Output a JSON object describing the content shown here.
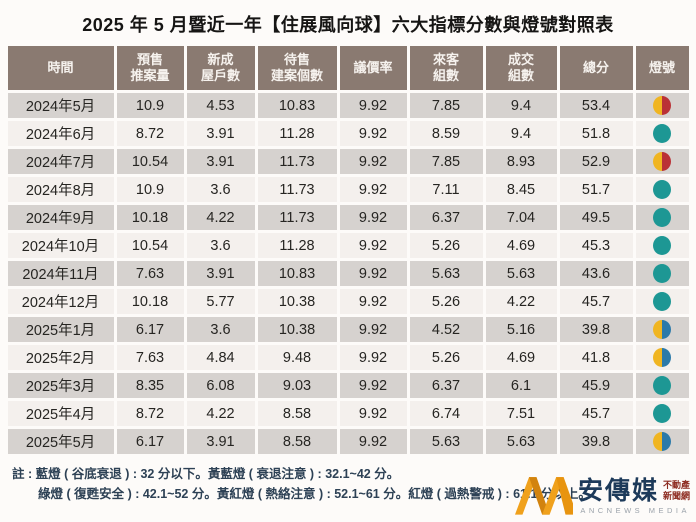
{
  "title": "2025 年 5 月暨近一年【住展風向球】六大指標分數與燈號對照表",
  "table": {
    "headers": [
      "時間",
      "預售\n推案量",
      "新成\n屋戶數",
      "待售\n建案個數",
      "議價率",
      "來客\n組數",
      "成交\n組數",
      "總分",
      "燈號"
    ],
    "rows": [
      {
        "time": "2024年5月",
        "values": [
          "10.9",
          "4.53",
          "10.83",
          "9.92",
          "7.85",
          "9.4",
          "53.4"
        ],
        "light": "yellow-red"
      },
      {
        "time": "2024年6月",
        "values": [
          "8.72",
          "3.91",
          "11.28",
          "9.92",
          "8.59",
          "9.4",
          "51.8"
        ],
        "light": "green"
      },
      {
        "time": "2024年7月",
        "values": [
          "10.54",
          "3.91",
          "11.73",
          "9.92",
          "7.85",
          "8.93",
          "52.9"
        ],
        "light": "yellow-red"
      },
      {
        "time": "2024年8月",
        "values": [
          "10.9",
          "3.6",
          "11.73",
          "9.92",
          "7.11",
          "8.45",
          "51.7"
        ],
        "light": "green"
      },
      {
        "time": "2024年9月",
        "values": [
          "10.18",
          "4.22",
          "11.73",
          "9.92",
          "6.37",
          "7.04",
          "49.5"
        ],
        "light": "green"
      },
      {
        "time": "2024年10月",
        "values": [
          "10.54",
          "3.6",
          "11.28",
          "9.92",
          "5.26",
          "4.69",
          "45.3"
        ],
        "light": "green"
      },
      {
        "time": "2024年11月",
        "values": [
          "7.63",
          "3.91",
          "10.83",
          "9.92",
          "5.63",
          "5.63",
          "43.6"
        ],
        "light": "green"
      },
      {
        "time": "2024年12月",
        "values": [
          "10.18",
          "5.77",
          "10.38",
          "9.92",
          "5.26",
          "4.22",
          "45.7"
        ],
        "light": "green"
      },
      {
        "time": "2025年1月",
        "values": [
          "6.17",
          "3.6",
          "10.38",
          "9.92",
          "4.52",
          "5.16",
          "39.8"
        ],
        "light": "yellow-blue"
      },
      {
        "time": "2025年2月",
        "values": [
          "7.63",
          "4.84",
          "9.48",
          "9.92",
          "5.26",
          "4.69",
          "41.8"
        ],
        "light": "yellow-blue"
      },
      {
        "time": "2025年3月",
        "values": [
          "8.35",
          "6.08",
          "9.03",
          "9.92",
          "6.37",
          "6.1",
          "45.9"
        ],
        "light": "green"
      },
      {
        "time": "2025年4月",
        "values": [
          "8.72",
          "4.22",
          "8.58",
          "9.92",
          "6.74",
          "7.51",
          "45.7"
        ],
        "light": "green"
      },
      {
        "time": "2025年5月",
        "values": [
          "6.17",
          "3.91",
          "8.58",
          "9.92",
          "5.63",
          "5.63",
          "39.8"
        ],
        "light": "yellow-blue"
      }
    ]
  },
  "notes": {
    "line1": "註 : 藍燈 ( 谷底衰退 ) : 32 分以下。黃藍燈 ( 衰退注意 ) : 32.1~42 分。",
    "line2": "綠燈 ( 復甦安全 ) : 42.1~52 分。黃紅燈 ( 熱絡注意 ) : 52.1~61 分。紅燈 ( 過熱警戒 ) : 61.1 分以上。"
  },
  "watermark": {
    "brand": "安傳媒",
    "sub_line1": "不動產",
    "sub_line2": "新聞網",
    "latin": "ANCNEWS MEDIA"
  },
  "colors": {
    "header-bg": "#8a7a71",
    "row-dark": "#d6d2cf",
    "row-light": "#f4f0ed",
    "green": "#1d9794",
    "yellow": "#f0b521",
    "red": "#ba3136",
    "blue": "#2c7aa9"
  },
  "chart_data": {
    "type": "table",
    "title": "2025 年 5 月暨近一年【住展風向球】六大指標分數與燈號對照表",
    "columns": [
      "時間",
      "預售推案量",
      "新成屋戶數",
      "待售建案個數",
      "議價率",
      "來客組數",
      "成交組數",
      "總分",
      "燈號"
    ],
    "rows": [
      [
        "2024年5月",
        10.9,
        4.53,
        10.83,
        9.92,
        7.85,
        9.4,
        53.4,
        "黃紅燈"
      ],
      [
        "2024年6月",
        8.72,
        3.91,
        11.28,
        9.92,
        8.59,
        9.4,
        51.8,
        "綠燈"
      ],
      [
        "2024年7月",
        10.54,
        3.91,
        11.73,
        9.92,
        7.85,
        8.93,
        52.9,
        "黃紅燈"
      ],
      [
        "2024年8月",
        10.9,
        3.6,
        11.73,
        9.92,
        7.11,
        8.45,
        51.7,
        "綠燈"
      ],
      [
        "2024年9月",
        10.18,
        4.22,
        11.73,
        9.92,
        6.37,
        7.04,
        49.5,
        "綠燈"
      ],
      [
        "2024年10月",
        10.54,
        3.6,
        11.28,
        9.92,
        5.26,
        4.69,
        45.3,
        "綠燈"
      ],
      [
        "2024年11月",
        7.63,
        3.91,
        10.83,
        9.92,
        5.63,
        5.63,
        43.6,
        "綠燈"
      ],
      [
        "2024年12月",
        10.18,
        5.77,
        10.38,
        9.92,
        5.26,
        4.22,
        45.7,
        "綠燈"
      ],
      [
        "2025年1月",
        6.17,
        3.6,
        10.38,
        9.92,
        4.52,
        5.16,
        39.8,
        "黃藍燈"
      ],
      [
        "2025年2月",
        7.63,
        4.84,
        9.48,
        9.92,
        5.26,
        4.69,
        41.8,
        "黃藍燈"
      ],
      [
        "2025年3月",
        8.35,
        6.08,
        9.03,
        9.92,
        6.37,
        6.1,
        45.9,
        "綠燈"
      ],
      [
        "2025年4月",
        8.72,
        4.22,
        8.58,
        9.92,
        6.74,
        7.51,
        45.7,
        "綠燈"
      ],
      [
        "2025年5月",
        6.17,
        3.91,
        8.58,
        9.92,
        5.63,
        5.63,
        39.8,
        "黃藍燈"
      ]
    ],
    "legend": {
      "藍燈 (谷底衰退)": "32 分以下",
      "黃藍燈 (衰退注意)": "32.1~42 分",
      "綠燈 (復甦安全)": "42.1~52 分",
      "黃紅燈 (熱絡注意)": "52.1~61 分",
      "紅燈 (過熱警戒)": "61.1 分以上"
    }
  }
}
